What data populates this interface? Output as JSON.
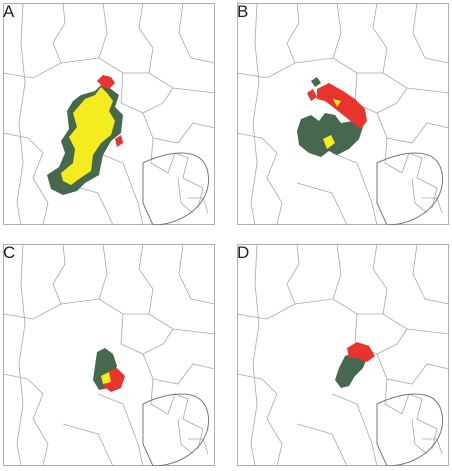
{
  "panels": [
    {
      "letter": "A"
    },
    {
      "letter": "B"
    },
    {
      "letter": "C"
    },
    {
      "letter": "D"
    }
  ],
  "colors": {
    "green": "#46684f",
    "yellow": "#f4ec1e",
    "red": "#e8342c",
    "border_lines": "#a0a0a0"
  }
}
